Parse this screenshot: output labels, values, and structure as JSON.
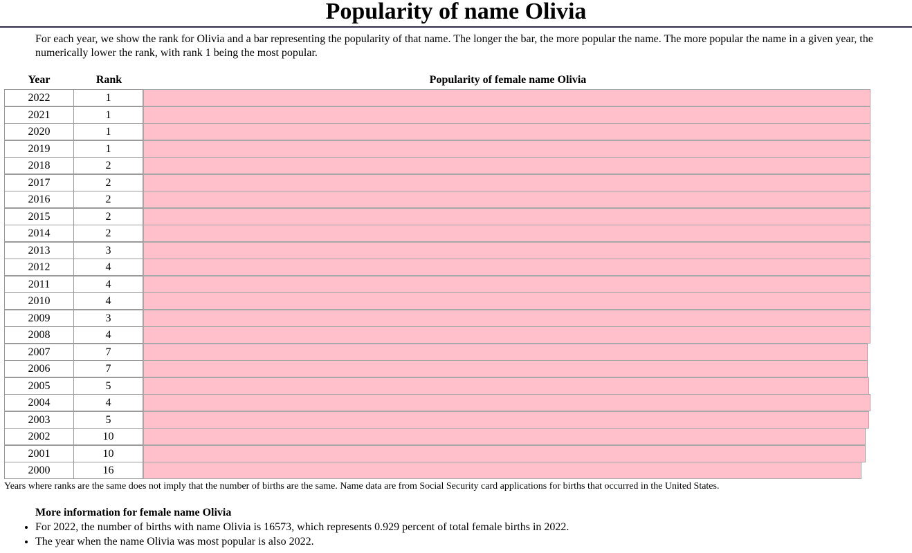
{
  "page": {
    "title": "Popularity of name Olivia",
    "intro": "For each year, we show the rank for Olivia and a bar representing the popularity of that name. The longer the bar, the more popular the name. The more popular the name in a given year, the numerically lower the rank, with rank 1 being the most popular.",
    "note": "Years where ranks are the same does not imply that the number of births are the same. Name data are from Social Security card applications for births that occurred in the United States.",
    "more_info": {
      "title": "More information for female name Olivia",
      "items": [
        "For 2022, the number of births with name Olivia is 16573, which represents 0.929 percent of total female births in 2022.",
        "The year when the name Olivia was most popular is also 2022."
      ]
    }
  },
  "chart_data": {
    "type": "bar",
    "orientation": "horizontal",
    "header_year": "Year",
    "header_rank": "Rank",
    "title": "Popularity of female name Olivia",
    "bar_color": "#ffc0cb",
    "rows": [
      {
        "year": "2022",
        "rank": "1",
        "popularity": 1.0
      },
      {
        "year": "2021",
        "rank": "1",
        "popularity": 1.0
      },
      {
        "year": "2020",
        "rank": "1",
        "popularity": 1.0
      },
      {
        "year": "2019",
        "rank": "1",
        "popularity": 1.0
      },
      {
        "year": "2018",
        "rank": "2",
        "popularity": 1.0
      },
      {
        "year": "2017",
        "rank": "2",
        "popularity": 1.0
      },
      {
        "year": "2016",
        "rank": "2",
        "popularity": 1.0
      },
      {
        "year": "2015",
        "rank": "2",
        "popularity": 1.0
      },
      {
        "year": "2014",
        "rank": "2",
        "popularity": 1.0
      },
      {
        "year": "2013",
        "rank": "3",
        "popularity": 1.0
      },
      {
        "year": "2012",
        "rank": "4",
        "popularity": 1.0
      },
      {
        "year": "2011",
        "rank": "4",
        "popularity": 1.0
      },
      {
        "year": "2010",
        "rank": "4",
        "popularity": 1.0
      },
      {
        "year": "2009",
        "rank": "3",
        "popularity": 1.0
      },
      {
        "year": "2008",
        "rank": "4",
        "popularity": 1.0
      },
      {
        "year": "2007",
        "rank": "7",
        "popularity": 0.9962
      },
      {
        "year": "2006",
        "rank": "7",
        "popularity": 0.9962
      },
      {
        "year": "2005",
        "rank": "5",
        "popularity": 0.9981
      },
      {
        "year": "2004",
        "rank": "4",
        "popularity": 1.0
      },
      {
        "year": "2003",
        "rank": "5",
        "popularity": 0.9981
      },
      {
        "year": "2002",
        "rank": "10",
        "popularity": 0.9933
      },
      {
        "year": "2001",
        "rank": "10",
        "popularity": 0.9933
      },
      {
        "year": "2000",
        "rank": "16",
        "popularity": 0.9876
      }
    ]
  }
}
